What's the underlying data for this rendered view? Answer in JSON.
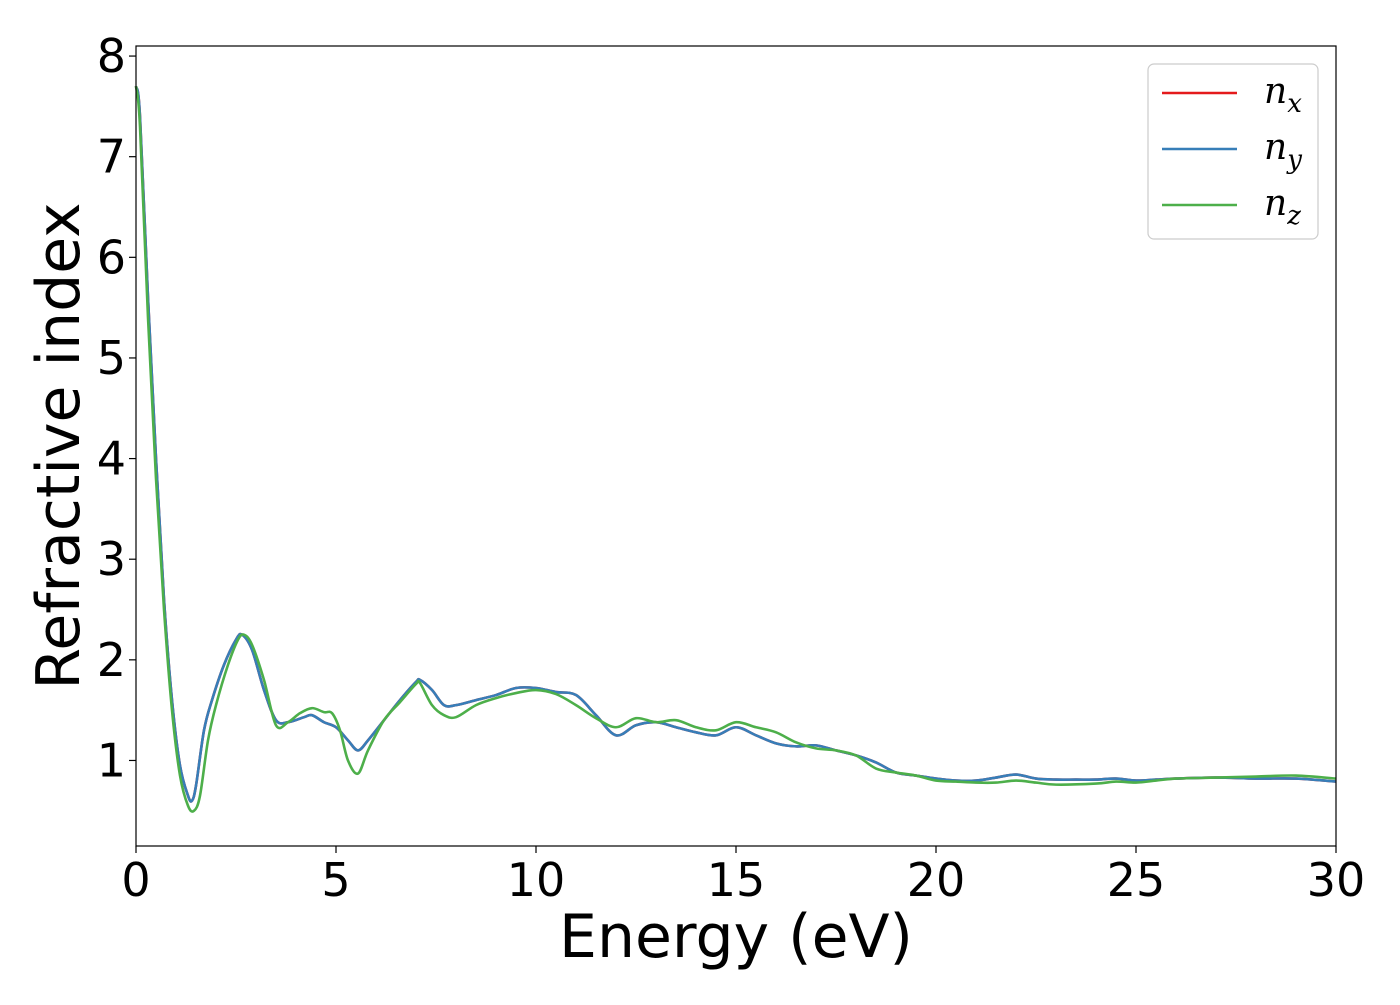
{
  "chart_data": {
    "type": "line",
    "title": "",
    "xlabel": "Energy (eV)",
    "ylabel": "Refractive index",
    "xlim": [
      0,
      30
    ],
    "ylim": [
      0.15,
      8.1
    ],
    "xticks": [
      0,
      5,
      10,
      15,
      20,
      25,
      30
    ],
    "xtick_labels": [
      "0",
      "5",
      "10",
      "15",
      "20",
      "25",
      "30"
    ],
    "yticks": [
      1,
      2,
      3,
      4,
      5,
      6,
      7,
      8
    ],
    "ytick_labels": [
      "1",
      "2",
      "3",
      "4",
      "5",
      "6",
      "7",
      "8"
    ],
    "grid": false,
    "legend_position": "top-right",
    "series": [
      {
        "name": "n_x",
        "label_main": "n",
        "label_sub": "x",
        "color": "#e41a1c",
        "x": [
          0,
          0.1,
          0.3,
          0.5,
          0.7,
          0.9,
          1.1,
          1.3,
          1.4,
          1.5,
          1.7,
          1.9,
          2.2,
          2.5,
          2.65,
          2.9,
          3.2,
          3.5,
          3.8,
          4.2,
          4.4,
          4.7,
          5.0,
          5.3,
          5.55,
          5.8,
          6.2,
          6.6,
          7.0,
          7.1,
          7.4,
          7.7,
          8.0,
          8.5,
          9.0,
          9.5,
          10.0,
          10.5,
          11.0,
          11.5,
          12.0,
          12.5,
          13.0,
          13.5,
          14.0,
          14.5,
          15.0,
          15.5,
          16.0,
          16.5,
          17.0,
          17.5,
          18.0,
          18.5,
          19.0,
          19.5,
          20.0,
          20.5,
          21.0,
          21.5,
          22.0,
          22.5,
          23.0,
          23.5,
          24.0,
          24.5,
          25.0,
          25.5,
          26.0,
          27.0,
          28.0,
          29.0,
          30.0
        ],
        "y": [
          7.7,
          7.4,
          5.6,
          4.0,
          2.6,
          1.6,
          0.95,
          0.65,
          0.6,
          0.75,
          1.3,
          1.6,
          1.95,
          2.2,
          2.25,
          2.1,
          1.7,
          1.4,
          1.38,
          1.43,
          1.45,
          1.38,
          1.33,
          1.2,
          1.1,
          1.2,
          1.4,
          1.6,
          1.78,
          1.8,
          1.7,
          1.55,
          1.55,
          1.6,
          1.65,
          1.72,
          1.72,
          1.68,
          1.65,
          1.45,
          1.25,
          1.35,
          1.38,
          1.33,
          1.28,
          1.25,
          1.33,
          1.25,
          1.17,
          1.14,
          1.15,
          1.1,
          1.05,
          0.98,
          0.88,
          0.85,
          0.82,
          0.8,
          0.8,
          0.83,
          0.86,
          0.82,
          0.81,
          0.81,
          0.81,
          0.82,
          0.8,
          0.81,
          0.82,
          0.83,
          0.82,
          0.82,
          0.79
        ]
      },
      {
        "name": "n_y",
        "label_main": "n",
        "label_sub": "y",
        "color": "#377eb8",
        "x": [
          0,
          0.1,
          0.3,
          0.5,
          0.7,
          0.9,
          1.1,
          1.3,
          1.4,
          1.5,
          1.7,
          1.9,
          2.2,
          2.5,
          2.65,
          2.9,
          3.2,
          3.5,
          3.8,
          4.2,
          4.4,
          4.7,
          5.0,
          5.3,
          5.55,
          5.8,
          6.2,
          6.6,
          7.0,
          7.1,
          7.4,
          7.7,
          8.0,
          8.5,
          9.0,
          9.5,
          10.0,
          10.5,
          11.0,
          11.5,
          12.0,
          12.5,
          13.0,
          13.5,
          14.0,
          14.5,
          15.0,
          15.5,
          16.0,
          16.5,
          17.0,
          17.5,
          18.0,
          18.5,
          19.0,
          19.5,
          20.0,
          20.5,
          21.0,
          21.5,
          22.0,
          22.5,
          23.0,
          23.5,
          24.0,
          24.5,
          25.0,
          25.5,
          26.0,
          27.0,
          28.0,
          29.0,
          30.0
        ],
        "y": [
          7.7,
          7.4,
          5.6,
          4.0,
          2.6,
          1.6,
          0.95,
          0.65,
          0.6,
          0.75,
          1.3,
          1.6,
          1.95,
          2.2,
          2.25,
          2.1,
          1.7,
          1.4,
          1.38,
          1.43,
          1.45,
          1.38,
          1.33,
          1.2,
          1.1,
          1.2,
          1.4,
          1.6,
          1.78,
          1.8,
          1.7,
          1.55,
          1.55,
          1.6,
          1.65,
          1.72,
          1.72,
          1.68,
          1.65,
          1.45,
          1.25,
          1.35,
          1.38,
          1.33,
          1.28,
          1.25,
          1.33,
          1.25,
          1.17,
          1.14,
          1.15,
          1.1,
          1.05,
          0.98,
          0.88,
          0.85,
          0.82,
          0.8,
          0.8,
          0.83,
          0.86,
          0.82,
          0.81,
          0.81,
          0.81,
          0.82,
          0.8,
          0.81,
          0.82,
          0.83,
          0.82,
          0.82,
          0.79
        ]
      },
      {
        "name": "n_z",
        "label_main": "n",
        "label_sub": "z",
        "color": "#4daf4a",
        "x": [
          0,
          0.1,
          0.3,
          0.5,
          0.7,
          0.9,
          1.1,
          1.3,
          1.45,
          1.6,
          1.8,
          2.0,
          2.3,
          2.55,
          2.7,
          2.9,
          3.2,
          3.5,
          3.8,
          4.1,
          4.4,
          4.7,
          4.9,
          5.1,
          5.3,
          5.55,
          5.8,
          6.2,
          6.6,
          7.0,
          7.1,
          7.4,
          7.7,
          8.0,
          8.5,
          9.0,
          9.5,
          10.0,
          10.5,
          11.0,
          11.5,
          12.0,
          12.5,
          13.0,
          13.5,
          14.0,
          14.5,
          15.0,
          15.5,
          16.0,
          16.5,
          17.0,
          17.5,
          18.0,
          18.5,
          19.0,
          19.5,
          20.0,
          20.5,
          21.0,
          21.5,
          22.0,
          22.5,
          23.0,
          24.0,
          24.5,
          25.0,
          25.5,
          26.0,
          27.0,
          28.0,
          29.0,
          30.0
        ],
        "y": [
          7.7,
          7.3,
          5.4,
          3.8,
          2.5,
          1.5,
          0.85,
          0.55,
          0.5,
          0.65,
          1.2,
          1.55,
          1.95,
          2.2,
          2.25,
          2.15,
          1.8,
          1.35,
          1.38,
          1.47,
          1.52,
          1.48,
          1.47,
          1.3,
          1.0,
          0.87,
          1.1,
          1.4,
          1.58,
          1.76,
          1.77,
          1.55,
          1.45,
          1.43,
          1.55,
          1.62,
          1.67,
          1.7,
          1.66,
          1.55,
          1.42,
          1.33,
          1.42,
          1.38,
          1.4,
          1.33,
          1.3,
          1.38,
          1.33,
          1.28,
          1.18,
          1.12,
          1.1,
          1.05,
          0.92,
          0.88,
          0.85,
          0.8,
          0.79,
          0.78,
          0.78,
          0.8,
          0.78,
          0.76,
          0.77,
          0.79,
          0.78,
          0.8,
          0.82,
          0.83,
          0.84,
          0.85,
          0.82
        ]
      }
    ]
  }
}
